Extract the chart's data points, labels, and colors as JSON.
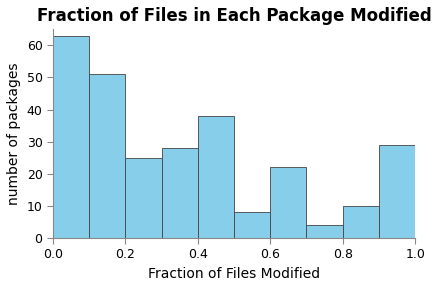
{
  "title": "Fraction of Files in Each Package Modified",
  "xlabel": "Fraction of Files Modified",
  "ylabel": "number of packages",
  "bar_heights": [
    63,
    51,
    25,
    28,
    38,
    8,
    22,
    4,
    10,
    29
  ],
  "bin_edges": [
    0.0,
    0.1,
    0.2,
    0.3,
    0.4,
    0.5,
    0.6,
    0.7,
    0.8,
    0.9,
    1.0
  ],
  "bar_color": "#87CEEB",
  "bar_edge_color": "#444444",
  "background_color": "#ffffff",
  "ylim": [
    0,
    65
  ],
  "yticks": [
    0,
    10,
    20,
    30,
    40,
    50,
    60
  ],
  "xticks": [
    0.0,
    0.2,
    0.4,
    0.6,
    0.8,
    1.0
  ],
  "title_fontsize": 12,
  "axis_label_fontsize": 10,
  "tick_fontsize": 9
}
